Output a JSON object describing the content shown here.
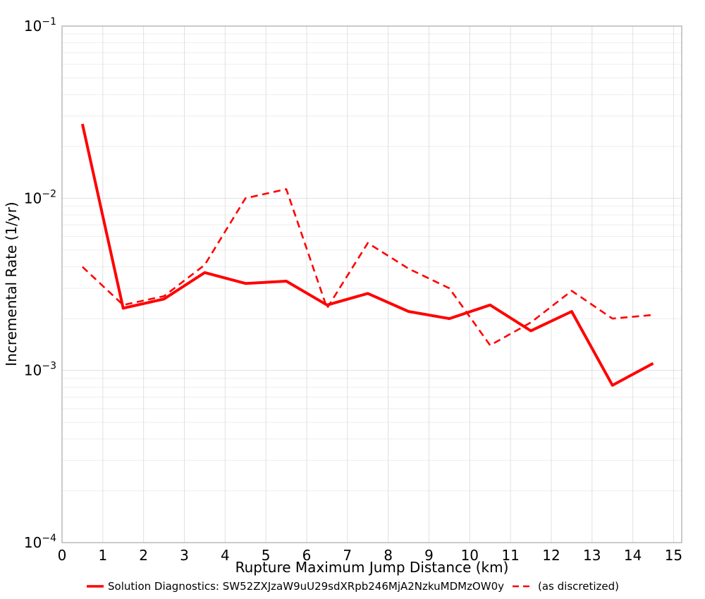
{
  "colors": {
    "line": "#ff0000",
    "grid_major": "#e0e0e0",
    "grid_minor": "#eeeeee",
    "border": "#a8a8a8",
    "tick_text": "#000000"
  },
  "axes": {
    "x_title": "Rupture Maximum Jump Distance (km)",
    "y_title": "Incremental Rate (1/yr)",
    "x_tick_values": [
      0,
      1,
      2,
      3,
      4,
      5,
      6,
      7,
      8,
      9,
      10,
      11,
      12,
      13,
      14,
      15
    ],
    "y_tick_exponents": [
      -1,
      -2,
      -3,
      -4
    ]
  },
  "legend": {
    "solid_label": "Solution Diagnostics: SW52ZXJzaW9uU29sdXRpb246MjA2NzkuMDMzOW0y",
    "dashed_label": "(as discretized)"
  },
  "chart_data": {
    "type": "line",
    "title": "",
    "xlabel": "Rupture Maximum Jump Distance (km)",
    "ylabel": "Incremental Rate (1/yr)",
    "yscale": "log",
    "xlim": [
      0,
      15.2
    ],
    "ylim": [
      0.0001,
      0.1
    ],
    "grid": "on",
    "legend_position": "bottom",
    "x": [
      0.5,
      1.5,
      2.5,
      3.5,
      4.5,
      5.5,
      6.5,
      7.5,
      8.5,
      9.5,
      10.5,
      11.5,
      12.5,
      13.5,
      14.5
    ],
    "series": [
      {
        "name": "Solution Diagnostics: SW52ZXJzaW9uU29sdXRpb246MjA2NzkuMDMzOW0y",
        "style": "solid",
        "values": [
          0.027,
          0.0023,
          0.0026,
          0.0037,
          0.0032,
          0.0033,
          0.0024,
          0.0028,
          0.0022,
          0.002,
          0.0024,
          0.0017,
          0.0022,
          0.00082,
          0.0011
        ]
      },
      {
        "name": "(as discretized)",
        "style": "dashed",
        "values": [
          0.004,
          0.0024,
          0.0027,
          0.0041,
          0.01,
          0.0113,
          0.0023,
          0.0055,
          0.0039,
          0.003,
          0.0014,
          0.0019,
          0.0029,
          0.002,
          0.0021
        ]
      }
    ]
  }
}
